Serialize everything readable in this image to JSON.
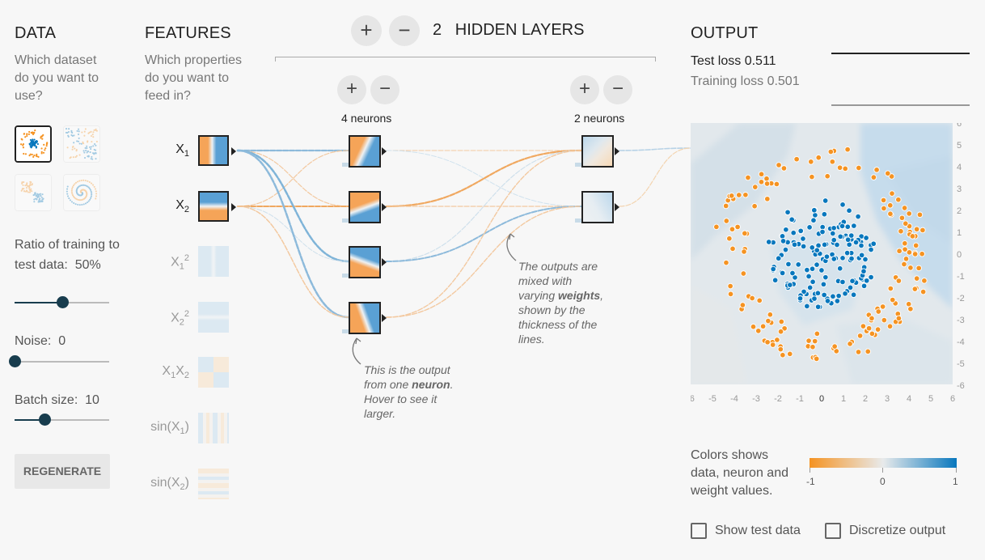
{
  "data_panel": {
    "heading": "DATA",
    "question": "Which dataset do you want to use?",
    "datasets": [
      "circle",
      "xor",
      "gaussian",
      "spiral"
    ],
    "selected_dataset": "circle",
    "ratio_label": "Ratio of training to test data:",
    "ratio_value": "50%",
    "ratio_fraction": 0.5,
    "noise_label": "Noise:",
    "noise_value": "0",
    "noise_fraction": 0,
    "batch_label": "Batch size:",
    "batch_value": "10",
    "batch_fraction": 0.32,
    "regenerate_label": "REGENERATE"
  },
  "features_panel": {
    "heading": "FEATURES",
    "question": "Which properties do you want to feed in?",
    "features": [
      {
        "base": "X",
        "sub": "1",
        "sup": "",
        "post": "",
        "active": true,
        "pattern": "x1"
      },
      {
        "base": "X",
        "sub": "2",
        "sup": "",
        "post": "",
        "active": true,
        "pattern": "x2"
      },
      {
        "base": "X",
        "sub": "1",
        "sup": "2",
        "post": "",
        "active": false,
        "pattern": "x1sq"
      },
      {
        "base": "X",
        "sub": "2",
        "sup": "2",
        "post": "",
        "active": false,
        "pattern": "x2sq"
      },
      {
        "base": "X",
        "sub": "1",
        "sup": "",
        "post": "X",
        "post_sub": "2",
        "active": false,
        "pattern": "x1x2"
      },
      {
        "base": "sin(X",
        "sub": "1",
        "sup": "",
        "post": ")",
        "active": false,
        "pattern": "sinx1"
      },
      {
        "base": "sin(X",
        "sub": "2",
        "sup": "",
        "post": ")",
        "active": false,
        "pattern": "sinx2"
      }
    ]
  },
  "network": {
    "hidden_layers_count": "2",
    "hidden_layers_label": "HIDDEN LAYERS",
    "add_layer_symbol": "+",
    "remove_layer_symbol": "−",
    "layers": [
      {
        "neurons_label": "4 neurons",
        "add_symbol": "+",
        "remove_symbol": "−"
      },
      {
        "neurons_label": "2 neurons",
        "add_symbol": "+",
        "remove_symbol": "−"
      }
    ],
    "note_neuron": {
      "pre": "This is the output from one ",
      "bold": "neuron",
      "post": ". Hover to see it larger."
    },
    "note_weights": {
      "pre": "The outputs are mixed with varying ",
      "bold": "weights",
      "post": ", shown by the thickness of the lines."
    }
  },
  "output_panel": {
    "heading": "OUTPUT",
    "test_loss_label": "Test loss",
    "test_loss_value": "0.511",
    "training_loss_label": "Training loss",
    "training_loss_value": "0.501",
    "axis_ticks": [
      "-6",
      "-5",
      "-4",
      "-3",
      "-2",
      "-1",
      "0",
      "1",
      "2",
      "3",
      "4",
      "5",
      "6"
    ],
    "legend_text": "Colors shows data, neuron and weight values.",
    "legend_ticks": [
      "-1",
      "0",
      "1"
    ],
    "show_test_label": "Show test data",
    "discretize_label": "Discretize output",
    "colors": {
      "orange": "#f59322",
      "blue": "#0877bd",
      "mid": "#e8eaeb"
    }
  }
}
